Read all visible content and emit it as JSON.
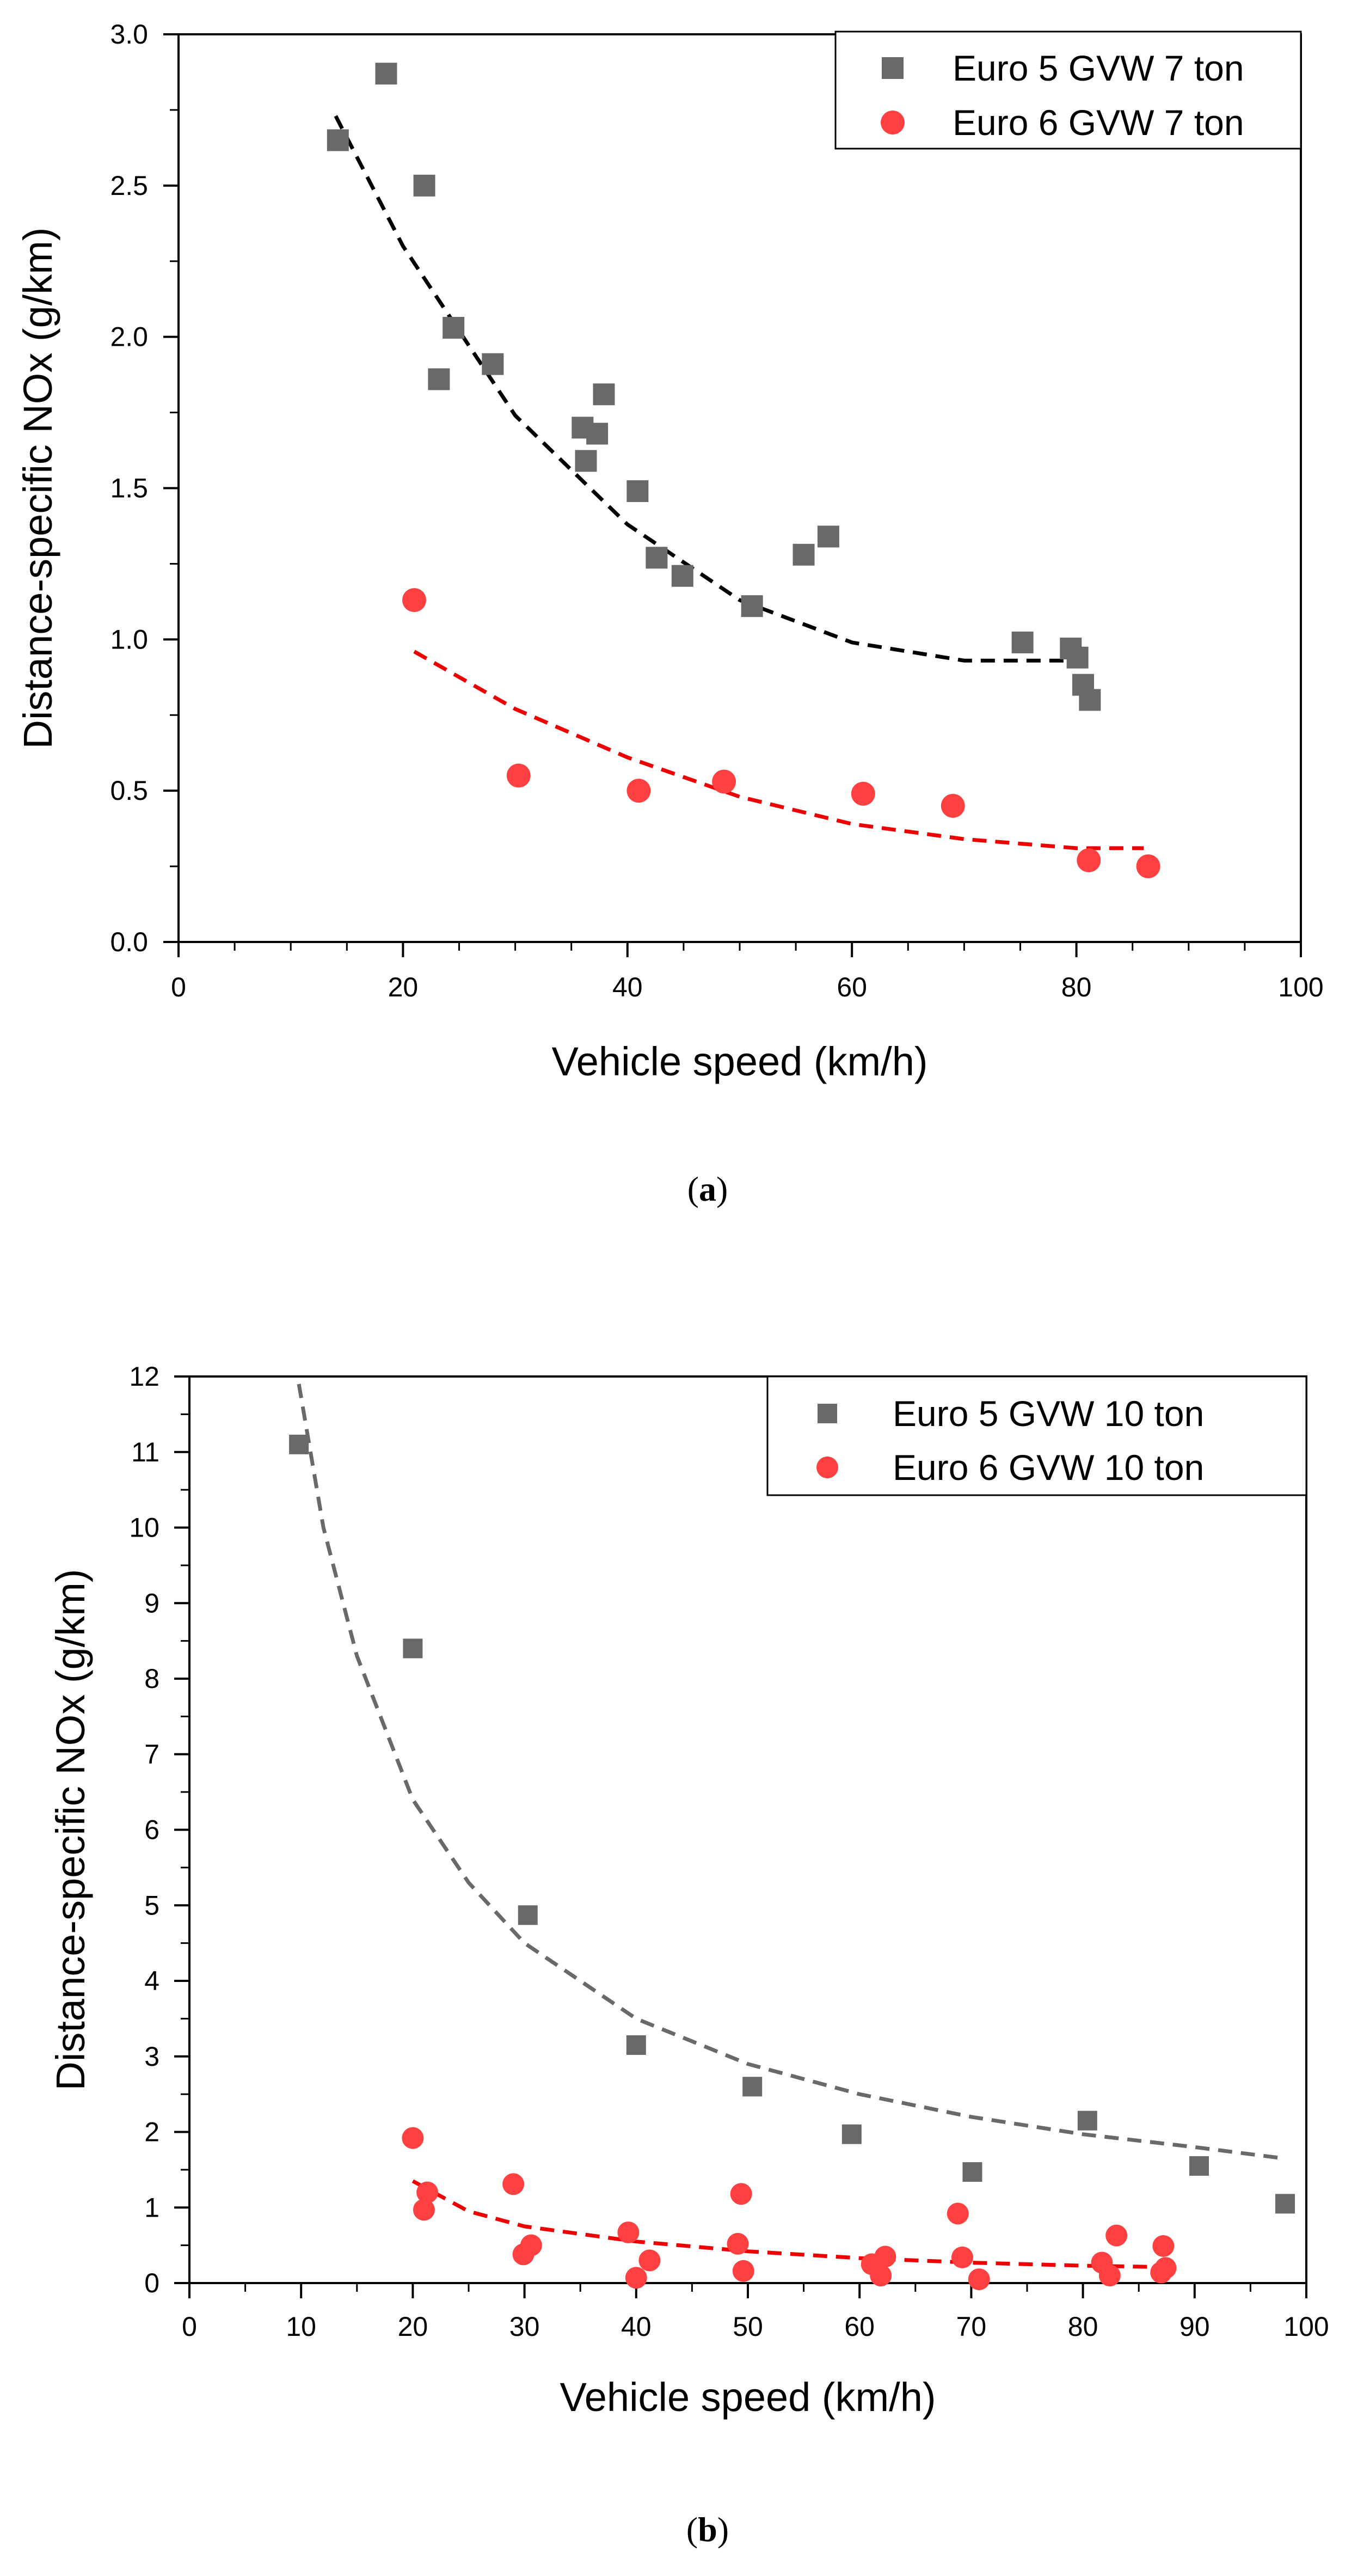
{
  "chart_data": [
    {
      "type": "scatter",
      "caption": "(a)",
      "xlabel": "Vehicle speed (km/h)",
      "ylabel": "Distance-specific NOx (g/km)",
      "xlim": [
        0,
        100
      ],
      "ylim": [
        0,
        3.0
      ],
      "x_ticks": [
        "0",
        "20",
        "40",
        "60",
        "80",
        "100"
      ],
      "y_ticks": [
        "0.0",
        "0.5",
        "1.0",
        "1.5",
        "2.0",
        "2.5",
        "3.0"
      ],
      "legend_position": "top-right",
      "series": [
        {
          "name": "Euro 5 GVW 7 ton",
          "marker": "square",
          "color": "#696969",
          "points": [
            [
              14.2,
              2.65
            ],
            [
              18.5,
              2.87
            ],
            [
              21.9,
              2.5
            ],
            [
              23.2,
              1.86
            ],
            [
              24.5,
              2.03
            ],
            [
              28.0,
              1.91
            ],
            [
              36.0,
              1.7
            ],
            [
              36.3,
              1.59
            ],
            [
              37.3,
              1.68
            ],
            [
              37.9,
              1.81
            ],
            [
              40.9,
              1.49
            ],
            [
              42.6,
              1.27
            ],
            [
              44.9,
              1.21
            ],
            [
              51.1,
              1.11
            ],
            [
              55.7,
              1.28
            ],
            [
              57.9,
              1.34
            ],
            [
              75.2,
              0.99
            ],
            [
              79.5,
              0.97
            ],
            [
              80.1,
              0.94
            ],
            [
              80.6,
              0.85
            ],
            [
              81.2,
              0.8
            ]
          ],
          "fit": {
            "color": "#000000",
            "points": [
              [
                14,
                2.73
              ],
              [
                20,
                2.3
              ],
              [
                30,
                1.74
              ],
              [
                40,
                1.38
              ],
              [
                50,
                1.13
              ],
              [
                60,
                0.99
              ],
              [
                70,
                0.93
              ],
              [
                81,
                0.93
              ]
            ]
          }
        },
        {
          "name": "Euro 6 GVW 7 ton",
          "marker": "circle",
          "color": "#ff4040",
          "points": [
            [
              21.0,
              1.13
            ],
            [
              30.3,
              0.55
            ],
            [
              41.0,
              0.5
            ],
            [
              48.6,
              0.53
            ],
            [
              61.0,
              0.49
            ],
            [
              69.0,
              0.45
            ],
            [
              81.1,
              0.27
            ],
            [
              86.4,
              0.25
            ]
          ],
          "fit": {
            "color": "#ee0000",
            "points": [
              [
                21,
                0.96
              ],
              [
                30,
                0.77
              ],
              [
                40,
                0.61
              ],
              [
                50,
                0.48
              ],
              [
                60,
                0.39
              ],
              [
                70,
                0.34
              ],
              [
                80,
                0.31
              ],
              [
                86,
                0.31
              ]
            ]
          }
        }
      ]
    },
    {
      "type": "scatter",
      "caption": "(b)",
      "xlabel": "Vehicle speed (km/h)",
      "ylabel": "Distance-specific NOx (g/km)",
      "xlim": [
        0,
        100
      ],
      "ylim": [
        0,
        12
      ],
      "x_ticks": [
        "0",
        "10",
        "20",
        "30",
        "40",
        "50",
        "60",
        "70",
        "80",
        "90",
        "100"
      ],
      "y_ticks": [
        "0",
        "1",
        "2",
        "3",
        "4",
        "5",
        "6",
        "7",
        "8",
        "9",
        "10",
        "11",
        "12"
      ],
      "legend_position": "top-right",
      "series": [
        {
          "name": "Euro 5 GVW 10 ton",
          "marker": "square",
          "color": "#696969",
          "points": [
            [
              9.8,
              11.1
            ],
            [
              20.0,
              8.4
            ],
            [
              30.3,
              4.87
            ],
            [
              40.0,
              3.15
            ],
            [
              50.4,
              2.6
            ],
            [
              59.3,
              1.97
            ],
            [
              70.1,
              1.47
            ],
            [
              80.4,
              2.15
            ],
            [
              90.4,
              1.55
            ],
            [
              98.1,
              1.05
            ]
          ],
          "fit": {
            "color": "#696969",
            "points": [
              [
                9.8,
                11.9
              ],
              [
                12,
                10.0
              ],
              [
                15,
                8.3
              ],
              [
                20,
                6.4
              ],
              [
                25,
                5.3
              ],
              [
                30,
                4.5
              ],
              [
                40,
                3.5
              ],
              [
                50,
                2.9
              ],
              [
                60,
                2.5
              ],
              [
                70,
                2.2
              ],
              [
                80,
                1.97
              ],
              [
                90,
                1.8
              ],
              [
                98,
                1.65
              ]
            ]
          }
        },
        {
          "name": "Euro 6 GVW 10 ton",
          "marker": "circle",
          "color": "#ff4040",
          "points": [
            [
              20.0,
              1.92
            ],
            [
              21.0,
              0.97
            ],
            [
              21.3,
              1.2
            ],
            [
              29.0,
              1.31
            ],
            [
              29.9,
              0.38
            ],
            [
              30.6,
              0.5
            ],
            [
              39.3,
              0.67
            ],
            [
              40.0,
              0.07
            ],
            [
              41.2,
              0.3
            ],
            [
              49.1,
              0.52
            ],
            [
              49.4,
              1.18
            ],
            [
              49.6,
              0.16
            ],
            [
              61.1,
              0.25
            ],
            [
              61.9,
              0.1
            ],
            [
              62.3,
              0.35
            ],
            [
              68.8,
              0.92
            ],
            [
              69.2,
              0.34
            ],
            [
              70.7,
              0.05
            ],
            [
              81.7,
              0.27
            ],
            [
              82.4,
              0.1
            ],
            [
              83.0,
              0.63
            ],
            [
              87.0,
              0.14
            ],
            [
              87.2,
              0.49
            ],
            [
              87.4,
              0.2
            ]
          ],
          "fit": {
            "color": "#ee0000",
            "points": [
              [
                20,
                1.35
              ],
              [
                25,
                0.95
              ],
              [
                30,
                0.75
              ],
              [
                40,
                0.55
              ],
              [
                50,
                0.42
              ],
              [
                60,
                0.33
              ],
              [
                70,
                0.27
              ],
              [
                80,
                0.23
              ],
              [
                88,
                0.21
              ]
            ]
          }
        }
      ]
    }
  ]
}
